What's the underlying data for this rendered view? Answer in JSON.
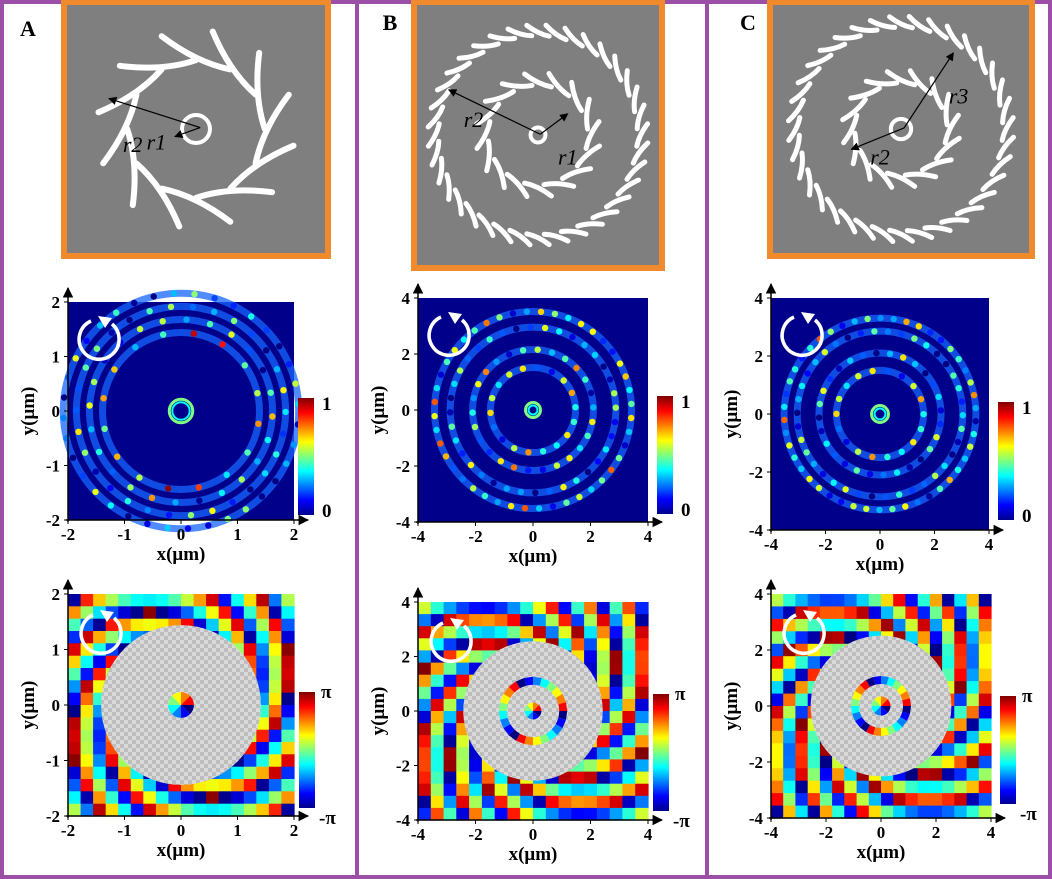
{
  "panels": [
    {
      "letter": "A",
      "radii_labels": {
        "inner": "r1",
        "outer": "r2"
      },
      "axis": {
        "min": -2,
        "max": 2,
        "ticks": [
          "-2",
          "-1",
          "0",
          "1",
          "2"
        ]
      },
      "x_label": "x(μm)",
      "y_label": "y(μm)",
      "intensity_colorbar": {
        "max": "1",
        "min": "0"
      },
      "phase_colorbar": {
        "max": "π",
        "min": "-π"
      }
    },
    {
      "letter": "B",
      "radii_labels": {
        "inner": "r1",
        "outer": "r2"
      },
      "axis": {
        "min": -4,
        "max": 4,
        "ticks": [
          "-4",
          "-2",
          "0",
          "2",
          "4"
        ]
      },
      "x_label": "x(μm)",
      "y_label": "y(μm)",
      "intensity_colorbar": {
        "max": "1",
        "min": "0"
      },
      "phase_colorbar": {
        "max": "π",
        "min": "-π"
      }
    },
    {
      "letter": "C",
      "radii_labels": {
        "inner": "r2",
        "outer": "r3"
      },
      "axis": {
        "min": -4,
        "max": 4,
        "ticks": [
          "-4",
          "-2",
          "0",
          "2",
          "4"
        ]
      },
      "x_label": "x(μm)",
      "y_label": "y(μm)",
      "intensity_colorbar": {
        "max": "1",
        "min": "0"
      },
      "phase_colorbar": {
        "max": "π",
        "min": "-π"
      }
    }
  ],
  "colors": {
    "border": "#9b4fa6",
    "frame": "#f08a2c",
    "plate": "#7f7f7f",
    "slit": "#ffffff",
    "field_bg": "#00008b"
  }
}
